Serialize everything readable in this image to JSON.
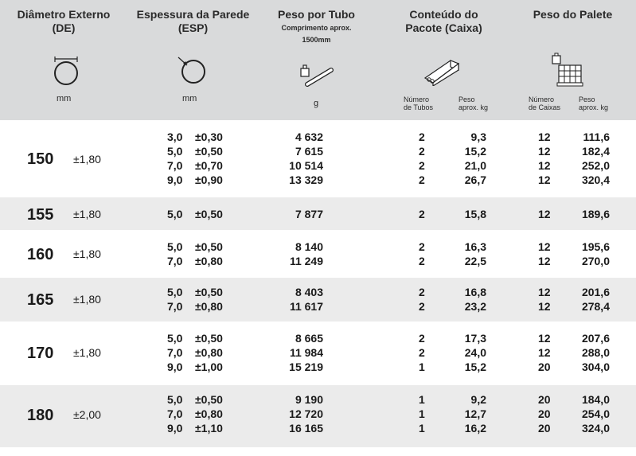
{
  "headers": {
    "de": {
      "title_line1": "Diâmetro Externo",
      "title_line2": "(DE)",
      "unit": "mm",
      "icon": "pipe-diameter-icon"
    },
    "esp": {
      "title_line1": "Espessura da Parede",
      "title_line2": "(ESP)",
      "unit": "mm",
      "icon": "wall-thickness-icon"
    },
    "peso_tubo": {
      "title": "Peso por Tubo",
      "sub_line1": "Comprimento aprox.",
      "sub_line2": "1500mm",
      "unit": "g",
      "icon": "weight-tube-icon"
    },
    "pacote": {
      "title_line1": "Conteúdo do",
      "title_line2": "Pacote (Caixa)",
      "col1_line1": "Número",
      "col1_line2": "de Tubos",
      "col2_line1": "Peso",
      "col2_line2": "aprox. kg",
      "icon": "box-icon"
    },
    "palete": {
      "title": "Peso do Palete",
      "col1_line1": "Número",
      "col1_line2": "de Caixas",
      "col2_line1": "Peso",
      "col2_line2": "aprox. kg",
      "icon": "pallet-icon"
    }
  },
  "groups": [
    {
      "de": "150",
      "tol": "±1,80",
      "rows": [
        {
          "esp": "3,0",
          "esp_tol": "±0,30",
          "peso": "4 632",
          "n_tubos": "2",
          "peso_caixa": "9,3",
          "n_caixas": "12",
          "peso_palete": "111,6"
        },
        {
          "esp": "5,0",
          "esp_tol": "±0,50",
          "peso": "7 615",
          "n_tubos": "2",
          "peso_caixa": "15,2",
          "n_caixas": "12",
          "peso_palete": "182,4"
        },
        {
          "esp": "7,0",
          "esp_tol": "±0,70",
          "peso": "10 514",
          "n_tubos": "2",
          "peso_caixa": "21,0",
          "n_caixas": "12",
          "peso_palete": "252,0"
        },
        {
          "esp": "9,0",
          "esp_tol": "±0,90",
          "peso": "13 329",
          "n_tubos": "2",
          "peso_caixa": "26,7",
          "n_caixas": "12",
          "peso_palete": "320,4"
        }
      ]
    },
    {
      "de": "155",
      "tol": "±1,80",
      "rows": [
        {
          "esp": "5,0",
          "esp_tol": "±0,50",
          "peso": "7 877",
          "n_tubos": "2",
          "peso_caixa": "15,8",
          "n_caixas": "12",
          "peso_palete": "189,6"
        }
      ]
    },
    {
      "de": "160",
      "tol": "±1,80",
      "rows": [
        {
          "esp": "5,0",
          "esp_tol": "±0,50",
          "peso": "8 140",
          "n_tubos": "2",
          "peso_caixa": "16,3",
          "n_caixas": "12",
          "peso_palete": "195,6"
        },
        {
          "esp": "7,0",
          "esp_tol": "±0,80",
          "peso": "11 249",
          "n_tubos": "2",
          "peso_caixa": "22,5",
          "n_caixas": "12",
          "peso_palete": "270,0"
        }
      ]
    },
    {
      "de": "165",
      "tol": "±1,80",
      "rows": [
        {
          "esp": "5,0",
          "esp_tol": "±0,50",
          "peso": "8 403",
          "n_tubos": "2",
          "peso_caixa": "16,8",
          "n_caixas": "12",
          "peso_palete": "201,6"
        },
        {
          "esp": "7,0",
          "esp_tol": "±0,80",
          "peso": "11 617",
          "n_tubos": "2",
          "peso_caixa": "23,2",
          "n_caixas": "12",
          "peso_palete": "278,4"
        }
      ]
    },
    {
      "de": "170",
      "tol": "±1,80",
      "rows": [
        {
          "esp": "5,0",
          "esp_tol": "±0,50",
          "peso": "8 665",
          "n_tubos": "2",
          "peso_caixa": "17,3",
          "n_caixas": "12",
          "peso_palete": "207,6"
        },
        {
          "esp": "7,0",
          "esp_tol": "±0,80",
          "peso": "11 984",
          "n_tubos": "2",
          "peso_caixa": "24,0",
          "n_caixas": "12",
          "peso_palete": "288,0"
        },
        {
          "esp": "9,0",
          "esp_tol": "±1,00",
          "peso": "15 219",
          "n_tubos": "1",
          "peso_caixa": "15,2",
          "n_caixas": "20",
          "peso_palete": "304,0"
        }
      ]
    },
    {
      "de": "180",
      "tol": "±2,00",
      "rows": [
        {
          "esp": "5,0",
          "esp_tol": "±0,50",
          "peso": "9 190",
          "n_tubos": "1",
          "peso_caixa": "9,2",
          "n_caixas": "20",
          "peso_palete": "184,0"
        },
        {
          "esp": "7,0",
          "esp_tol": "±0,80",
          "peso": "12 720",
          "n_tubos": "1",
          "peso_caixa": "12,7",
          "n_caixas": "20",
          "peso_palete": "254,0"
        },
        {
          "esp": "9,0",
          "esp_tol": "±1,10",
          "peso": "16 165",
          "n_tubos": "1",
          "peso_caixa": "16,2",
          "n_caixas": "20",
          "peso_palete": "324,0"
        }
      ]
    }
  ]
}
